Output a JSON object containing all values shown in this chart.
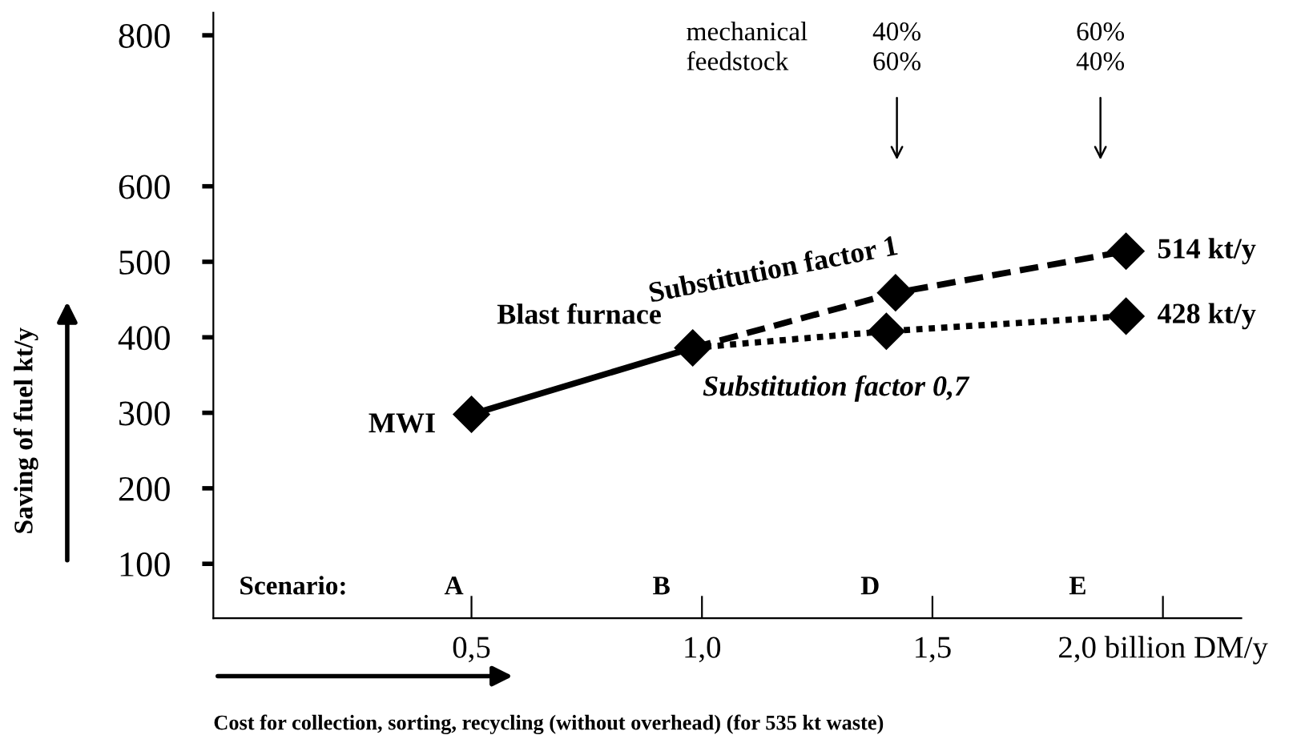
{
  "chart_data": {
    "type": "line",
    "xlabel": "Cost for collection, sorting, recycling (without overhead) (for 535 kt waste)",
    "ylabel": "Saving of fuel kt/y",
    "series": [
      {
        "color": "#000000",
        "x": [
          0.5,
          0.98
        ],
        "values": [
          298,
          386
        ],
        "line_style": "solid"
      },
      {
        "name": "Substitution factor 1",
        "color": "#000000",
        "x": [
          0.98,
          1.42,
          1.92
        ],
        "values": [
          386,
          459,
          514
        ],
        "line_style": "dashed",
        "value_labels": [
          null,
          null,
          "514 kt/y"
        ]
      },
      {
        "name": "Substitution factor 0,7",
        "color": "#000000",
        "x": [
          0.98,
          1.4,
          1.92
        ],
        "values": [
          386,
          408,
          428
        ],
        "line_style": "dotted",
        "value_labels": [
          null,
          null,
          "428 kt/y"
        ]
      }
    ],
    "marker": "diamond",
    "xlim": [
      -0.06,
      2.17
    ],
    "ylim": [
      28,
      830
    ],
    "xticks": [
      {
        "value": 0.5,
        "label": "0,5"
      },
      {
        "value": 1.0,
        "label": "1,0"
      },
      {
        "value": 1.5,
        "label": "1,5"
      },
      {
        "value": 2.0,
        "label": "2,0 billion DM/y"
      }
    ],
    "yticks": [
      100,
      200,
      300,
      400,
      500,
      600,
      800
    ],
    "grid": false,
    "legend": false,
    "annotations": [
      {
        "text": "MWI",
        "x": 0.5,
        "y": 298
      },
      {
        "text": "Blast furnace",
        "x": 0.98,
        "y": 386
      },
      "mechanical\nfeedstock",
      "40%\n60%",
      "60%\n40%",
      "Scenario:",
      "A",
      "B",
      "D",
      "E"
    ]
  }
}
